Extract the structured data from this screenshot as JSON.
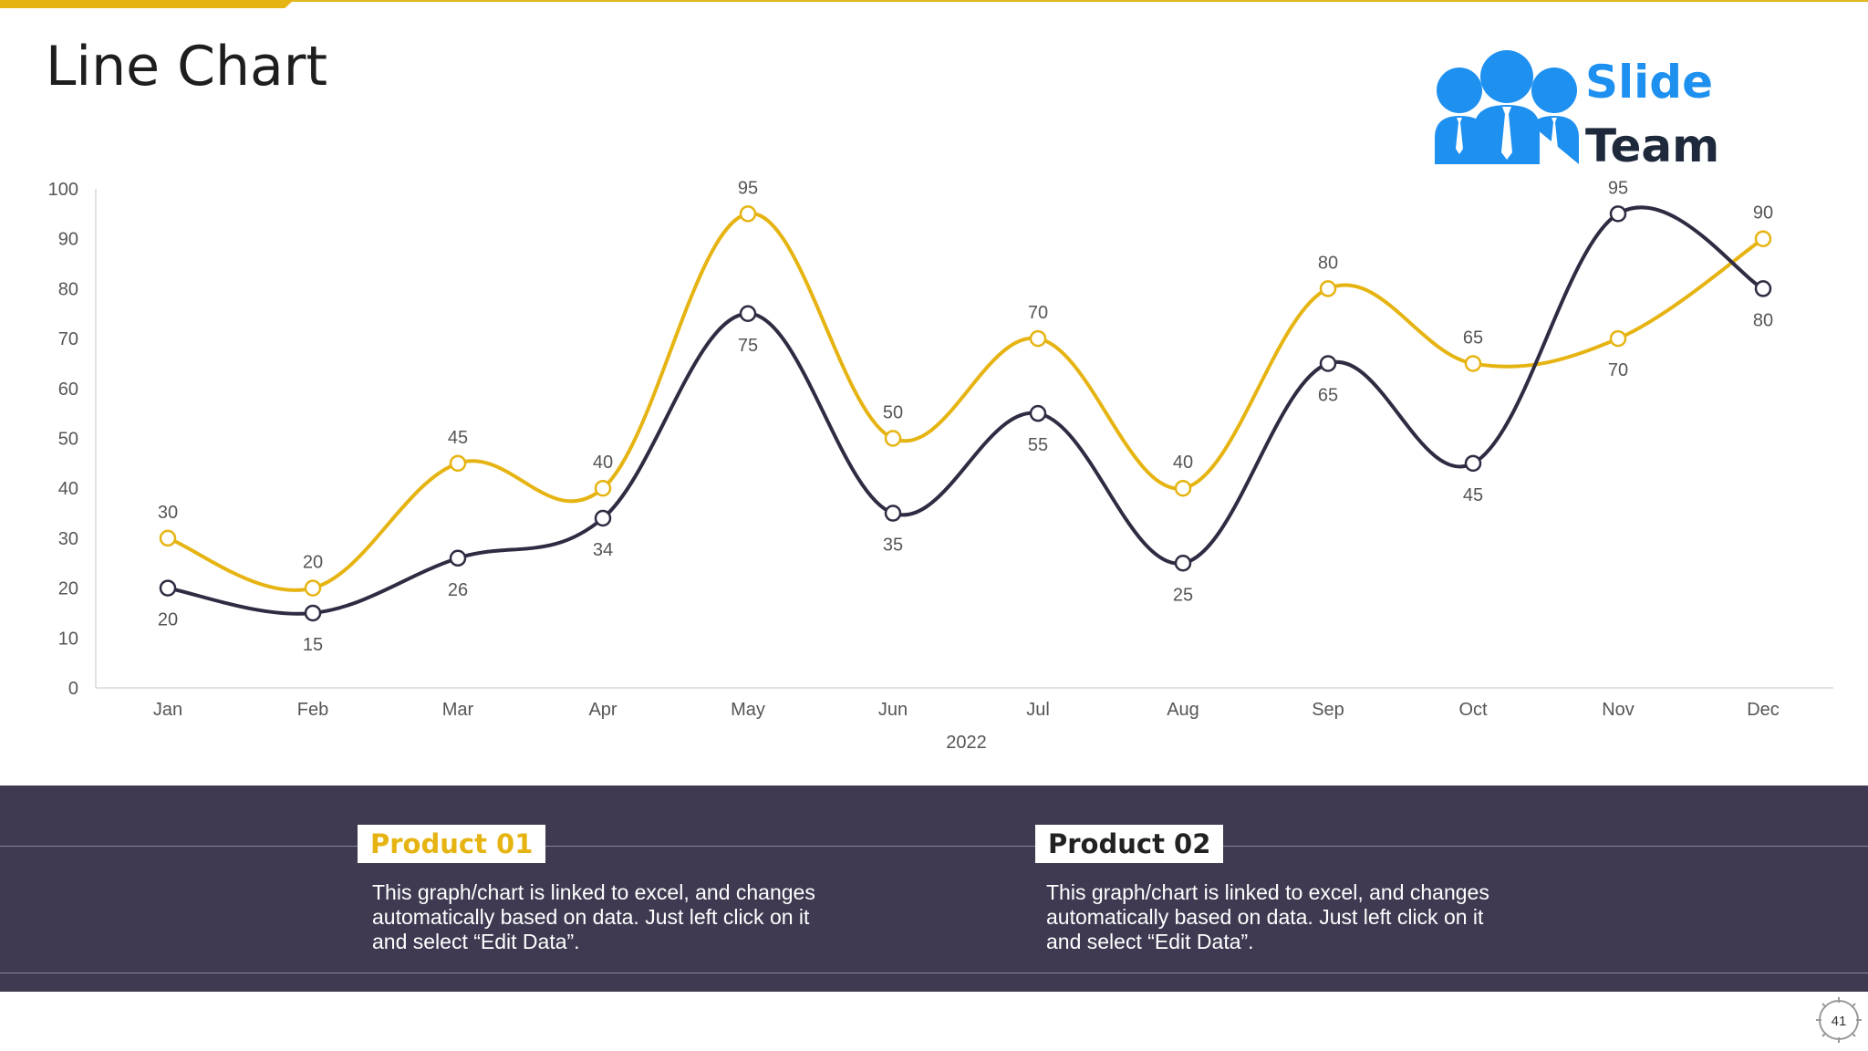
{
  "slide": {
    "title": "Line Chart",
    "page_number": "41"
  },
  "logo": {
    "line1": "Slide",
    "line2": "Team",
    "icon": "team-people-icon"
  },
  "colors": {
    "accent": "#e6b412",
    "product02_line": "#2f2b42",
    "panel": "#3f3a51",
    "logo_blue": "#1e90f0"
  },
  "chart_data": {
    "type": "line",
    "categories": [
      "Jan",
      "Feb",
      "Mar",
      "Apr",
      "May",
      "Jun",
      "Jul",
      "Aug",
      "Sep",
      "Oct",
      "Nov",
      "Dec"
    ],
    "xlabel": "2022",
    "ylabel": "",
    "ylim": [
      0,
      100
    ],
    "yticks": [
      0,
      10,
      20,
      30,
      40,
      50,
      60,
      70,
      80,
      90,
      100
    ],
    "grid": false,
    "legend": "none",
    "smooth": true,
    "series": [
      {
        "name": "Product 01",
        "color": "#e6b412",
        "values": [
          30,
          20,
          45,
          40,
          95,
          50,
          70,
          40,
          80,
          65,
          70,
          90
        ]
      },
      {
        "name": "Product 02",
        "color": "#2f2b42",
        "values": [
          20,
          15,
          26,
          34,
          75,
          35,
          55,
          25,
          65,
          45,
          95,
          80
        ]
      }
    ]
  },
  "products": [
    {
      "title": "Product 01",
      "description": "This graph/chart is linked to excel, and changes automatically based on data. Just left click on it and select “Edit Data”."
    },
    {
      "title": "Product 02",
      "description": "This graph/chart is linked to excel, and changes automatically based on data. Just left click on it and select “Edit Data”."
    }
  ]
}
